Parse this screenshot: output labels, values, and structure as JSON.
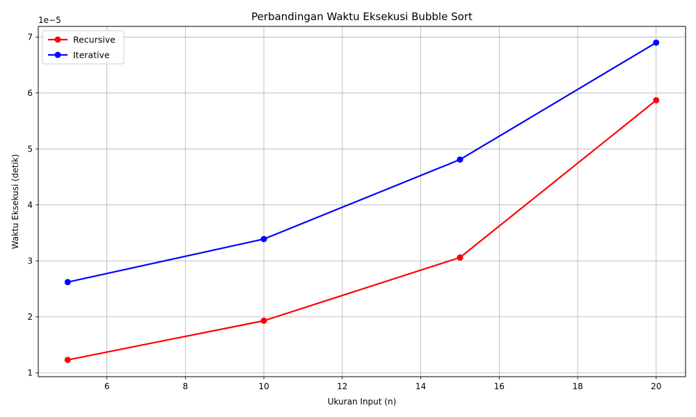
{
  "chart_data": {
    "type": "line",
    "title": "Perbandingan Waktu Eksekusi Bubble Sort",
    "xlabel": "Ukuran Input (n)",
    "ylabel": "Waktu Eksekusi (detik)",
    "y_offset_label": "1e−5",
    "y_scale_exponent": -5,
    "xlim": [
      4.25,
      20.75
    ],
    "ylim": [
      0.93,
      7.19
    ],
    "x_ticks": [
      6,
      8,
      10,
      12,
      14,
      16,
      18,
      20
    ],
    "y_ticks": [
      1,
      2,
      3,
      4,
      5,
      6,
      7
    ],
    "grid": true,
    "legend_position": "top-left",
    "x": [
      5,
      10,
      15,
      20
    ],
    "series": [
      {
        "name": "Recursive",
        "color": "#ff0000",
        "values": [
          1.23,
          1.93,
          3.06,
          5.87
        ]
      },
      {
        "name": "Iterative",
        "color": "#0000ff",
        "values": [
          2.62,
          3.39,
          4.81,
          6.9
        ]
      }
    ]
  }
}
